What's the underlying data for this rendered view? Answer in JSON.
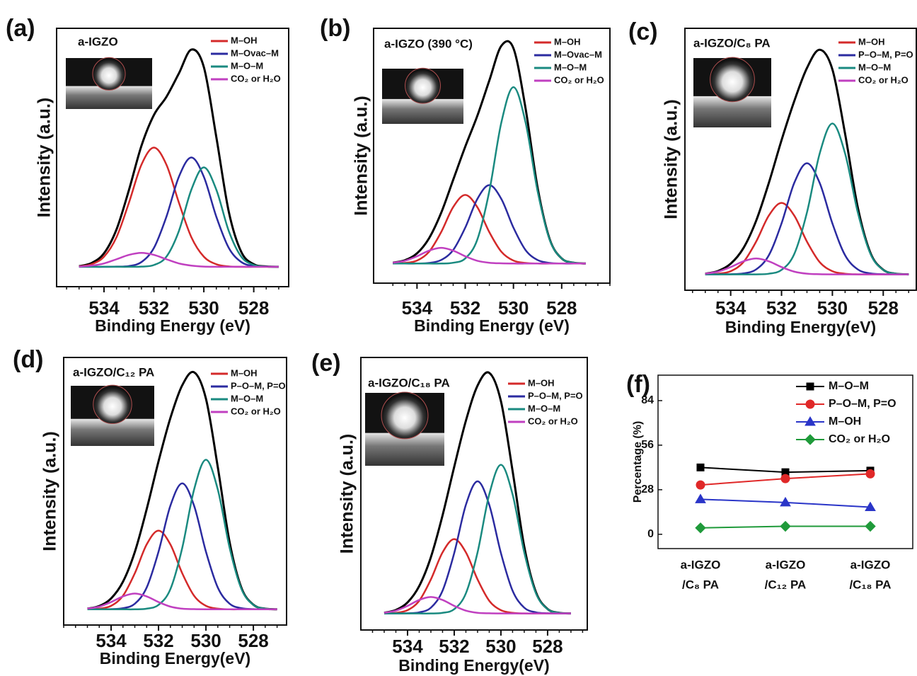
{
  "chart_data": [
    {
      "type": "line",
      "panel_label": "(a)",
      "title": "a-IGZO",
      "xlabel": "Binding Energy (eV)",
      "ylabel": "Intensity (a.u.)",
      "x": [
        535,
        534.5,
        534,
        533.5,
        533,
        532.5,
        532,
        531.5,
        531,
        530.5,
        530,
        529.5,
        529,
        528.5,
        528,
        527.5,
        527
      ],
      "xlim": [
        535.9,
        526.6
      ],
      "xticks": [
        534,
        532,
        530,
        528
      ],
      "ylim": [
        -0.1,
        1.2
      ],
      "series": [
        {
          "color": "#000000",
          "values": [
            0.003,
            0.019,
            0.068,
            0.188,
            0.387,
            0.609,
            0.764,
            0.855,
            0.973,
            1.093,
            1.005,
            0.653,
            0.277,
            0.075,
            0.013,
            0.002,
            0
          ]
        },
        {
          "name": "M–OH",
          "color": "#d42a2a",
          "values": [
            0.002,
            0.013,
            0.051,
            0.149,
            0.323,
            0.514,
            0.6,
            0.514,
            0.323,
            0.149,
            0.051,
            0.013,
            0.002,
            0,
            0,
            0,
            0
          ]
        },
        {
          "name": "M–Ovac–M",
          "color": "#2b2ba0",
          "values": [
            0,
            0,
            0,
            0.001,
            0.004,
            0.024,
            0.095,
            0.252,
            0.453,
            0.55,
            0.453,
            0.252,
            0.095,
            0.024,
            0.004,
            0.001,
            0
          ]
        },
        {
          "name": "M–O–M",
          "color": "#1a8a80",
          "values": [
            0,
            0,
            0,
            0,
            0,
            0.001,
            0.009,
            0.051,
            0.18,
            0.388,
            0.5,
            0.388,
            0.18,
            0.051,
            0.009,
            0.001,
            0
          ]
        },
        {
          "name": "CO₂ or H₂O",
          "color": "#c040c0",
          "values": [
            0.001,
            0.006,
            0.017,
            0.038,
            0.06,
            0.07,
            0.06,
            0.038,
            0.017,
            0.006,
            0.001,
            0,
            0,
            0,
            0,
            0,
            0
          ]
        }
      ]
    },
    {
      "type": "line",
      "panel_label": "(b)",
      "title": "a-IGZO (390 °C)",
      "xlabel": "Binding Energy (eV)",
      "ylabel": "Intensity (a.u.)",
      "x": [
        535,
        534.5,
        534,
        533.5,
        533,
        532.5,
        532,
        531.5,
        531,
        530.5,
        530,
        529.5,
        529,
        528.5,
        528,
        527.5,
        527
      ],
      "xlim": [
        535.8,
        526.0
      ],
      "xticks": [
        534,
        532,
        530,
        528
      ],
      "ylim": [
        -0.1,
        1.2
      ],
      "series": [
        {
          "color": "#000000",
          "values": [
            0.004,
            0.017,
            0.052,
            0.129,
            0.258,
            0.427,
            0.596,
            0.753,
            0.934,
            1.111,
            1.098,
            0.793,
            0.388,
            0.125,
            0.026,
            0.004,
            0
          ]
        },
        {
          "name": "M–OH",
          "color": "#d42a2a",
          "values": [
            0,
            0.003,
            0.015,
            0.06,
            0.16,
            0.288,
            0.35,
            0.288,
            0.16,
            0.06,
            0.015,
            0.003,
            0,
            0,
            0,
            0,
            0
          ]
        },
        {
          "name": "M–Ovac–M",
          "color": "#2b2ba0",
          "values": [
            0,
            0,
            0,
            0.003,
            0.018,
            0.069,
            0.183,
            0.329,
            0.4,
            0.329,
            0.183,
            0.069,
            0.018,
            0.003,
            0,
            0,
            0
          ]
        },
        {
          "name": "M–O–M",
          "color": "#1a8a80",
          "values": [
            0,
            0,
            0,
            0,
            0,
            0.004,
            0.026,
            0.122,
            0.37,
            0.721,
            0.9,
            0.721,
            0.37,
            0.122,
            0.026,
            0.004,
            0
          ]
        },
        {
          "name": "CO₂ or H₂O",
          "color": "#c040c0",
          "values": [
            0.004,
            0.014,
            0.037,
            0.066,
            0.08,
            0.066,
            0.037,
            0.014,
            0.004,
            0.001,
            0,
            0,
            0,
            0,
            0,
            0,
            0
          ]
        }
      ]
    },
    {
      "type": "line",
      "panel_label": "(c)",
      "title": "a-IGZO/C₈ PA",
      "xlabel": "Binding Energy(eV)",
      "ylabel": "Intensity (a.u.)",
      "x": [
        535,
        534.5,
        534,
        533.5,
        533,
        532.5,
        532,
        531.5,
        531,
        530.5,
        530,
        529.5,
        529,
        528.5,
        528,
        527.5,
        527
      ],
      "xlim": [
        535.8,
        526.7
      ],
      "xticks": [
        534,
        532,
        530,
        528
      ],
      "ylim": [
        -0.1,
        1.55
      ],
      "series": [
        {
          "color": "#000000",
          "values": [
            0.004,
            0.021,
            0.067,
            0.165,
            0.337,
            0.576,
            0.845,
            1.091,
            1.3,
            1.415,
            1.291,
            0.885,
            0.421,
            0.134,
            0.029,
            0.004,
            0
          ]
        },
        {
          "name": "M–OH",
          "color": "#d42a2a",
          "values": [
            0,
            0.004,
            0.02,
            0.077,
            0.206,
            0.37,
            0.45,
            0.37,
            0.206,
            0.077,
            0.02,
            0.004,
            0,
            0,
            0,
            0,
            0
          ]
        },
        {
          "name": "P–O–M, P=O",
          "color": "#2b2ba0",
          "values": [
            0,
            0,
            0.001,
            0.006,
            0.031,
            0.12,
            0.321,
            0.576,
            0.7,
            0.576,
            0.321,
            0.12,
            0.031,
            0.006,
            0.001,
            0,
            0
          ]
        },
        {
          "name": "M–O–M",
          "color": "#1a8a80",
          "values": [
            0,
            0,
            0,
            0,
            0,
            0.004,
            0.028,
            0.128,
            0.39,
            0.761,
            0.95,
            0.761,
            0.39,
            0.128,
            0.028,
            0.004,
            0
          ]
        },
        {
          "name": "CO₂ or H₂O",
          "color": "#c040c0",
          "values": [
            0.004,
            0.017,
            0.046,
            0.082,
            0.1,
            0.082,
            0.046,
            0.017,
            0.004,
            0.001,
            0,
            0,
            0,
            0,
            0,
            0,
            0
          ]
        }
      ]
    },
    {
      "type": "line",
      "panel_label": "(d)",
      "title": "a-IGZO/C₁₂ PA",
      "xlabel": "Binding Energy(eV)",
      "ylabel": "Intensity (a.u.)",
      "x": [
        535,
        534.5,
        534,
        533.5,
        533,
        532.5,
        532,
        531.5,
        531,
        530.5,
        530,
        529.5,
        529,
        528.5,
        528,
        527.5,
        527
      ],
      "xlim": [
        536.0,
        526.6
      ],
      "xticks": [
        534,
        532,
        530,
        528
      ],
      "ylim": [
        -0.1,
        1.6
      ],
      "series": [
        {
          "color": "#000000",
          "values": [
            0.004,
            0.021,
            0.069,
            0.175,
            0.364,
            0.636,
            0.94,
            1.215,
            1.423,
            1.506,
            1.338,
            0.903,
            0.425,
            0.135,
            0.029,
            0.004,
            0
          ]
        },
        {
          "name": "M–OH",
          "color": "#d42a2a",
          "values": [
            0,
            0.004,
            0.022,
            0.086,
            0.229,
            0.412,
            0.5,
            0.412,
            0.229,
            0.086,
            0.022,
            0.004,
            0,
            0,
            0,
            0,
            0
          ]
        },
        {
          "name": "P–O–M, P=O",
          "color": "#2b2ba0",
          "values": [
            0,
            0,
            0.001,
            0.007,
            0.035,
            0.138,
            0.366,
            0.658,
            0.8,
            0.658,
            0.366,
            0.138,
            0.035,
            0.007,
            0.001,
            0,
            0
          ]
        },
        {
          "name": "M–O–M",
          "color": "#1a8a80",
          "values": [
            0,
            0,
            0,
            0,
            0,
            0.004,
            0.028,
            0.128,
            0.39,
            0.761,
            0.95,
            0.761,
            0.39,
            0.128,
            0.028,
            0.004,
            0
          ]
        },
        {
          "name": "CO₂ or H₂O",
          "color": "#c040c0",
          "values": [
            0.004,
            0.017,
            0.046,
            0.082,
            0.1,
            0.082,
            0.046,
            0.017,
            0.004,
            0.001,
            0,
            0,
            0,
            0,
            0,
            0,
            0
          ]
        }
      ]
    },
    {
      "type": "line",
      "panel_label": "(e)",
      "title": "a-IGZO/C₁₈ PA",
      "xlabel": "Binding Energy(eV)",
      "ylabel": "Intensity (a.u.)",
      "x": [
        535,
        534.5,
        534,
        533.5,
        533,
        532.5,
        532,
        531.5,
        531,
        530.5,
        530,
        529.5,
        529,
        528.5,
        528,
        527.5,
        527
      ],
      "xlim": [
        536.0,
        526.3
      ],
      "xticks": [
        534,
        532,
        530,
        528
      ],
      "ylim": [
        -0.1,
        1.55
      ],
      "series": [
        {
          "color": "#000000",
          "values": [
            0.004,
            0.021,
            0.067,
            0.166,
            0.341,
            0.594,
            0.888,
            1.167,
            1.38,
            1.457,
            1.286,
            0.863,
            0.405,
            0.129,
            0.027,
            0.004,
            0
          ]
        },
        {
          "name": "M–OH",
          "color": "#d42a2a",
          "values": [
            0,
            0.004,
            0.02,
            0.077,
            0.206,
            0.37,
            0.45,
            0.37,
            0.206,
            0.077,
            0.02,
            0.004,
            0,
            0,
            0,
            0,
            0
          ]
        },
        {
          "name": "P–O–M, P=O",
          "color": "#2b2ba0",
          "values": [
            0,
            0,
            0.001,
            0.007,
            0.035,
            0.138,
            0.366,
            0.658,
            0.8,
            0.658,
            0.366,
            0.138,
            0.035,
            0.007,
            0.001,
            0,
            0
          ]
        },
        {
          "name": "M–O–M",
          "color": "#1a8a80",
          "values": [
            0,
            0,
            0,
            0,
            0,
            0.004,
            0.026,
            0.122,
            0.37,
            0.721,
            0.9,
            0.721,
            0.37,
            0.122,
            0.026,
            0.004,
            0
          ]
        },
        {
          "name": "CO₂ or H₂O",
          "color": "#c040c0",
          "values": [
            0.004,
            0.017,
            0.046,
            0.082,
            0.1,
            0.082,
            0.046,
            0.017,
            0.004,
            0.001,
            0,
            0,
            0,
            0,
            0,
            0,
            0
          ]
        }
      ]
    },
    {
      "type": "markers",
      "panel_label": "(f)",
      "ylabel": "Percentage (%)",
      "categories": [
        [
          "a-IGZO",
          "/C₈ PA"
        ],
        [
          "a-IGZO",
          "/C₁₂ PA"
        ],
        [
          "a-IGZO",
          "/C₁₈ PA"
        ]
      ],
      "ylim": [
        -9,
        100
      ],
      "yticks": [
        0,
        28,
        56,
        84
      ],
      "series": [
        {
          "name": "M–O–M",
          "color": "#000000",
          "marker": "square",
          "values": [
            42,
            39,
            40
          ]
        },
        {
          "name": "P–O–M, P=O",
          "color": "#e02828",
          "marker": "circle",
          "values": [
            31,
            35,
            38
          ]
        },
        {
          "name": "M–OH",
          "color": "#2a35c8",
          "marker": "triangle",
          "values": [
            22,
            20,
            17
          ]
        },
        {
          "name": "CO₂ or H₂O",
          "color": "#1f9a3a",
          "marker": "diamond",
          "values": [
            4,
            5,
            5
          ]
        }
      ]
    }
  ]
}
